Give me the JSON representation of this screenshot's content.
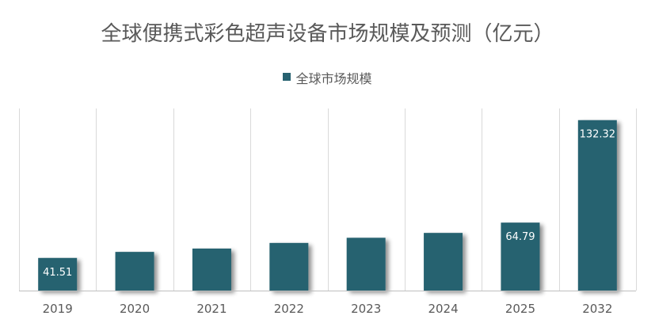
{
  "chart_data": {
    "type": "bar",
    "title": "全球便携式彩色超声设备市场规模及预测（亿元）",
    "categories": [
      "2019",
      "2020",
      "2021",
      "2022",
      "2023",
      "2024",
      "2025",
      "2032"
    ],
    "series": [
      {
        "name": "全球市场规模",
        "values": [
          41.51,
          45.5,
          47.7,
          51.4,
          54.8,
          58.0,
          64.79,
          132.32
        ],
        "labels": [
          "41.51",
          "",
          "",
          "",
          "",
          "",
          "64.79",
          "132.32"
        ]
      }
    ],
    "ylim": [
      20,
      140
    ],
    "grid": "vertical",
    "legend_position": "top-center",
    "colors": {
      "bar": "#276270",
      "grid": "#d9d9d9",
      "axis": "#bfbfbf",
      "text": "#595959",
      "data_label": "#ffffff"
    }
  }
}
